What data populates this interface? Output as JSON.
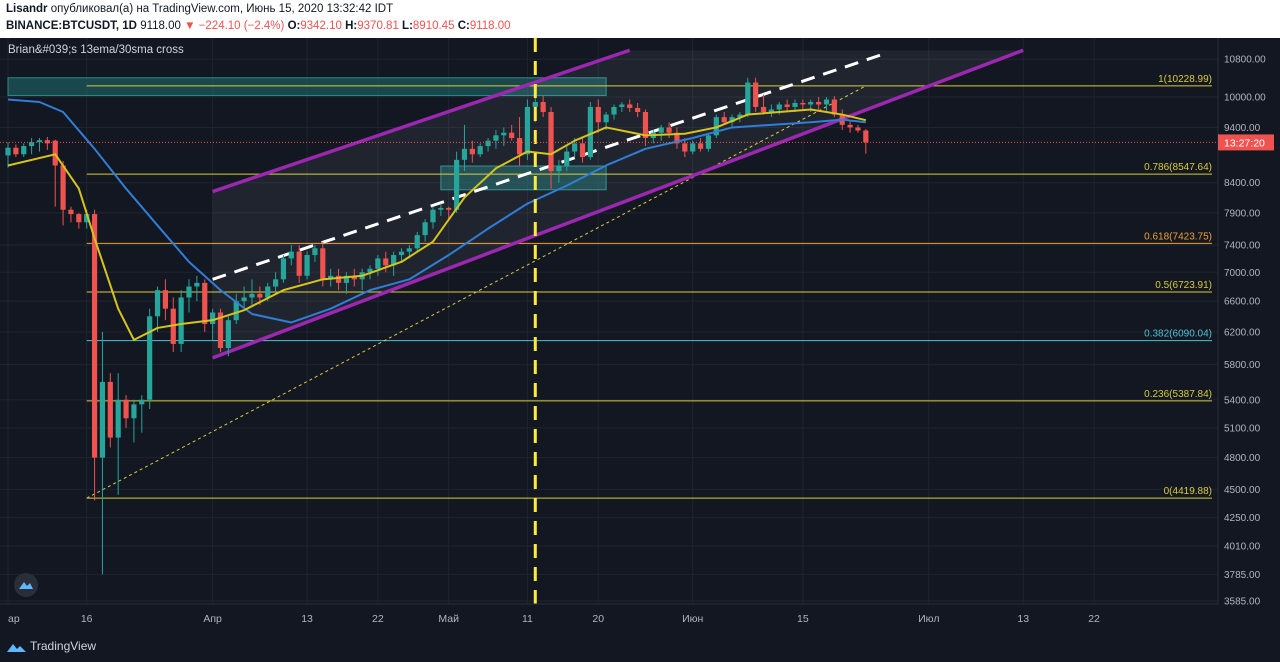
{
  "header": {
    "author": "Lisandr",
    "published_text": "опубликовал(а) на TradingView.com, Июнь 15, 2020 13:32:42 IDT",
    "symbol": "BINANCE:BTCUSDT, 1D",
    "last": "9118.00",
    "change": "▼ −224.10 (−2.4%)",
    "o_label": "O:",
    "o": "9342.10",
    "h_label": "H:",
    "h": "9370.81",
    "l_label": "L:",
    "l": "8910.45",
    "c_label": "C:",
    "c": "9118.00"
  },
  "indicator_label": "Brian&#039;s 13ema/30sma cross",
  "footer": {
    "brand": "TradingView"
  },
  "colors": {
    "background": "#131722",
    "up": "#26a69a",
    "down": "#ef5350",
    "ema13": "#d6c41a",
    "sma30": "#2f7ed8",
    "channel": "#9c27b0",
    "fib": "#d8cc3a",
    "fib_618": "#f0a030",
    "fib_382": "#4fc3d0",
    "zone": "#1f6f70"
  },
  "chart_data": {
    "type": "candlestick",
    "title": "",
    "xlabel": "",
    "ylabel": "",
    "scale": "log",
    "ylim": [
      3585,
      11050
    ],
    "y_ticks": [
      10800,
      10000,
      9400,
      8400,
      7900,
      7400,
      7000,
      6600,
      6200,
      5800,
      5400,
      5100,
      4800,
      4500,
      4250,
      4010,
      3785,
      3585
    ],
    "y_tick_labels": [
      "10800.00",
      "10000.00",
      "9400.00",
      "8400.00",
      "7900.00",
      "7400.00",
      "7000.00",
      "6600.00",
      "6200.00",
      "5800.00",
      "5400.00",
      "5100.00",
      "4800.00",
      "4500.00",
      "4250.00",
      "4010.00",
      "3785.00",
      "3585.00"
    ],
    "x_first_date": "2020-03-06",
    "x_ticks": [
      {
        "date": "2020-03-06",
        "label": "ар"
      },
      {
        "date": "2020-03-16",
        "label": "16"
      },
      {
        "date": "2020-04-01",
        "label": "Апр"
      },
      {
        "date": "2020-04-13",
        "label": "13"
      },
      {
        "date": "2020-04-22",
        "label": "22"
      },
      {
        "date": "2020-05-01",
        "label": "Май"
      },
      {
        "date": "2020-05-11",
        "label": "11"
      },
      {
        "date": "2020-05-20",
        "label": "20"
      },
      {
        "date": "2020-06-01",
        "label": "Июн"
      },
      {
        "date": "2020-06-15",
        "label": "15"
      },
      {
        "date": "2020-07-01",
        "label": "Июл"
      },
      {
        "date": "2020-07-13",
        "label": "13"
      },
      {
        "date": "2020-07-22",
        "label": "22"
      }
    ],
    "candles": [
      [
        "2020-03-06",
        8880,
        9120,
        8660,
        9020
      ],
      [
        "2020-03-07",
        9020,
        9080,
        8850,
        8900
      ],
      [
        "2020-03-08",
        8900,
        9100,
        8850,
        9050
      ],
      [
        "2020-03-09",
        9050,
        9200,
        8900,
        9120
      ],
      [
        "2020-03-10",
        9120,
        9200,
        8950,
        9160
      ],
      [
        "2020-03-11",
        9160,
        9220,
        8980,
        9100
      ],
      [
        "2020-03-12",
        9150,
        9170,
        8000,
        8700
      ],
      [
        "2020-03-13",
        8700,
        8780,
        7700,
        7950
      ],
      [
        "2020-03-14",
        7950,
        8000,
        7750,
        7880
      ],
      [
        "2020-03-15",
        7880,
        7900,
        7650,
        7750
      ],
      [
        "2020-03-16",
        7750,
        7950,
        7650,
        7880
      ],
      [
        "2020-03-17",
        7880,
        7950,
        4400,
        4800
      ],
      [
        "2020-03-18",
        4800,
        6200,
        3785,
        5600
      ],
      [
        "2020-03-19",
        5600,
        5700,
        4900,
        5000
      ],
      [
        "2020-03-20",
        5000,
        5700,
        4450,
        5400
      ],
      [
        "2020-03-21",
        5400,
        5450,
        5100,
        5200
      ],
      [
        "2020-03-22",
        5200,
        5400,
        4950,
        5350
      ],
      [
        "2020-03-23",
        5350,
        5450,
        5050,
        5400
      ],
      [
        "2020-03-24",
        5400,
        6500,
        5300,
        6400
      ],
      [
        "2020-03-25",
        6400,
        6800,
        6200,
        6750
      ],
      [
        "2020-03-26",
        6750,
        6900,
        6350,
        6500
      ],
      [
        "2020-03-27",
        6500,
        6650,
        5950,
        6050
      ],
      [
        "2020-03-28",
        6050,
        6750,
        5950,
        6650
      ],
      [
        "2020-03-29",
        6650,
        6900,
        6450,
        6800
      ],
      [
        "2020-03-30",
        6800,
        6950,
        6600,
        6850
      ],
      [
        "2020-03-31",
        6850,
        6900,
        6200,
        6300
      ],
      [
        "2020-04-01",
        6300,
        6500,
        6100,
        6450
      ],
      [
        "2020-04-02",
        6450,
        6500,
        5950,
        6000
      ],
      [
        "2020-04-03",
        6000,
        6400,
        5900,
        6350
      ],
      [
        "2020-04-04",
        6350,
        6700,
        6300,
        6600
      ],
      [
        "2020-04-05",
        6600,
        6800,
        6500,
        6650
      ],
      [
        "2020-04-06",
        6650,
        6900,
        6550,
        6700
      ],
      [
        "2020-04-07",
        6700,
        6800,
        6550,
        6650
      ],
      [
        "2020-04-08",
        6650,
        6850,
        6600,
        6800
      ],
      [
        "2020-04-09",
        6800,
        7000,
        6700,
        6900
      ],
      [
        "2020-04-10",
        6900,
        7250,
        6850,
        7200
      ],
      [
        "2020-04-11",
        7200,
        7400,
        7100,
        7300
      ],
      [
        "2020-04-12",
        7300,
        7400,
        6850,
        6950
      ],
      [
        "2020-04-13",
        6950,
        7300,
        6900,
        7250
      ],
      [
        "2020-04-14",
        7250,
        7400,
        7150,
        7350
      ],
      [
        "2020-04-15",
        7350,
        7450,
        6800,
        6900
      ],
      [
        "2020-04-16",
        6900,
        7050,
        6800,
        6950
      ],
      [
        "2020-04-17",
        6950,
        7050,
        6750,
        6850
      ],
      [
        "2020-04-18",
        6850,
        7000,
        6700,
        6950
      ],
      [
        "2020-04-19",
        6950,
        7050,
        6800,
        6900
      ],
      [
        "2020-04-20",
        6900,
        7050,
        6750,
        7000
      ],
      [
        "2020-04-21",
        7000,
        7100,
        6900,
        7050
      ],
      [
        "2020-04-22",
        7050,
        7250,
        6950,
        7200
      ],
      [
        "2020-04-23",
        7200,
        7300,
        7000,
        7100
      ],
      [
        "2020-04-24",
        7100,
        7300,
        6950,
        7250
      ],
      [
        "2020-04-25",
        7250,
        7350,
        7150,
        7300
      ],
      [
        "2020-04-26",
        7300,
        7400,
        7200,
        7350
      ],
      [
        "2020-04-27",
        7350,
        7600,
        7300,
        7550
      ],
      [
        "2020-04-28",
        7550,
        7800,
        7450,
        7750
      ],
      [
        "2020-04-29",
        7750,
        8000,
        7650,
        7950
      ],
      [
        "2020-04-30",
        7950,
        8050,
        7850,
        7980
      ],
      [
        "2020-05-01",
        7980,
        8000,
        7800,
        7950
      ],
      [
        "2020-05-02",
        7950,
        8950,
        7900,
        8800
      ],
      [
        "2020-05-03",
        8800,
        9450,
        8600,
        9000
      ],
      [
        "2020-05-04",
        9000,
        9150,
        8750,
        8900
      ],
      [
        "2020-05-05",
        8900,
        9100,
        8850,
        9050
      ],
      [
        "2020-05-06",
        9050,
        9200,
        8950,
        9150
      ],
      [
        "2020-05-07",
        9150,
        9350,
        9000,
        9250
      ],
      [
        "2020-05-08",
        9250,
        9400,
        9050,
        9300
      ],
      [
        "2020-05-09",
        9300,
        9450,
        9150,
        9200
      ],
      [
        "2020-05-10",
        9200,
        9600,
        8700,
        8900
      ],
      [
        "2020-05-11",
        8900,
        9950,
        8800,
        9800
      ],
      [
        "2020-05-12",
        9800,
        10050,
        9500,
        9900
      ],
      [
        "2020-05-13",
        9900,
        10020,
        9600,
        9700
      ],
      [
        "2020-05-14",
        9700,
        9800,
        8300,
        8600
      ],
      [
        "2020-05-15",
        8600,
        8800,
        8400,
        8700
      ],
      [
        "2020-05-16",
        8700,
        9050,
        8600,
        8950
      ],
      [
        "2020-05-17",
        8950,
        9200,
        8850,
        9100
      ],
      [
        "2020-05-18",
        9100,
        9200,
        8750,
        8850
      ],
      [
        "2020-05-19",
        8850,
        9900,
        8800,
        9800
      ],
      [
        "2020-05-20",
        9800,
        9950,
        9300,
        9500
      ],
      [
        "2020-05-21",
        9500,
        9700,
        9350,
        9650
      ],
      [
        "2020-05-22",
        9650,
        9850,
        9550,
        9800
      ],
      [
        "2020-05-23",
        9800,
        9900,
        9700,
        9850
      ],
      [
        "2020-05-24",
        9850,
        9950,
        9700,
        9780
      ],
      [
        "2020-05-25",
        9780,
        9880,
        9600,
        9700
      ],
      [
        "2020-05-26",
        9700,
        9750,
        9050,
        9200
      ],
      [
        "2020-05-27",
        9200,
        9350,
        9100,
        9300
      ],
      [
        "2020-05-28",
        9300,
        9450,
        9150,
        9400
      ],
      [
        "2020-05-29",
        9400,
        9500,
        9200,
        9300
      ],
      [
        "2020-05-30",
        9300,
        9400,
        9000,
        9100
      ],
      [
        "2020-05-31",
        9100,
        9200,
        8850,
        8950
      ],
      [
        "2020-06-01",
        8950,
        9150,
        8900,
        9100
      ],
      [
        "2020-06-02",
        9100,
        9200,
        8950,
        9000
      ],
      [
        "2020-06-03",
        9000,
        9300,
        8950,
        9250
      ],
      [
        "2020-06-04",
        9250,
        9650,
        9200,
        9600
      ],
      [
        "2020-06-05",
        9600,
        9700,
        9450,
        9500
      ],
      [
        "2020-06-06",
        9500,
        9650,
        9400,
        9600
      ],
      [
        "2020-06-07",
        9600,
        9700,
        9500,
        9650
      ],
      [
        "2020-06-08",
        9650,
        10400,
        9600,
        10300
      ],
      [
        "2020-06-09",
        10300,
        10400,
        9700,
        9800
      ],
      [
        "2020-06-10",
        9800,
        10050,
        9650,
        9700
      ],
      [
        "2020-06-11",
        9700,
        9850,
        9600,
        9750
      ],
      [
        "2020-06-12",
        9750,
        9900,
        9650,
        9850
      ],
      [
        "2020-06-13",
        9850,
        9950,
        9700,
        9800
      ],
      [
        "2020-06-14",
        9800,
        9950,
        9700,
        9880
      ],
      [
        "2020-06-15",
        9880,
        9950,
        9750,
        9850
      ],
      [
        "2020-06-16",
        9850,
        9950,
        9700,
        9900
      ],
      [
        "2020-06-17",
        9900,
        10000,
        9750,
        9850
      ],
      [
        "2020-06-18",
        9850,
        10000,
        9700,
        9950
      ],
      [
        "2020-06-19",
        9950,
        10020,
        9600,
        9650
      ],
      [
        "2020-06-20",
        9650,
        9750,
        9350,
        9450
      ],
      [
        "2020-06-21",
        9450,
        9550,
        9300,
        9400
      ],
      [
        "2020-06-22",
        9400,
        9450,
        9300,
        9342.1
      ],
      [
        "2020-06-23",
        9342.1,
        9370.81,
        8910.45,
        9118
      ]
    ],
    "ema13": [
      [
        "2020-03-06",
        8700
      ],
      [
        "2020-03-12",
        8900
      ],
      [
        "2020-03-15",
        8300
      ],
      [
        "2020-03-17",
        7500
      ],
      [
        "2020-03-20",
        6500
      ],
      [
        "2020-03-22",
        6100
      ],
      [
        "2020-03-25",
        6250
      ],
      [
        "2020-03-28",
        6300
      ],
      [
        "2020-04-01",
        6350
      ],
      [
        "2020-04-05",
        6480
      ],
      [
        "2020-04-10",
        6750
      ],
      [
        "2020-04-15",
        6900
      ],
      [
        "2020-04-20",
        6950
      ],
      [
        "2020-04-25",
        7150
      ],
      [
        "2020-04-29",
        7450
      ],
      [
        "2020-05-03",
        8150
      ],
      [
        "2020-05-07",
        8650
      ],
      [
        "2020-05-11",
        8950
      ],
      [
        "2020-05-14",
        8900
      ],
      [
        "2020-05-17",
        9150
      ],
      [
        "2020-05-21",
        9400
      ],
      [
        "2020-05-26",
        9250
      ],
      [
        "2020-05-31",
        9280
      ],
      [
        "2020-06-04",
        9400
      ],
      [
        "2020-06-08",
        9650
      ],
      [
        "2020-06-12",
        9700
      ],
      [
        "2020-06-16",
        9750
      ],
      [
        "2020-06-20",
        9650
      ],
      [
        "2020-06-23",
        9540
      ]
    ],
    "sma30": [
      [
        "2020-03-06",
        9950
      ],
      [
        "2020-03-10",
        9900
      ],
      [
        "2020-03-13",
        9700
      ],
      [
        "2020-03-17",
        9000
      ],
      [
        "2020-03-21",
        8300
      ],
      [
        "2020-03-25",
        7700
      ],
      [
        "2020-03-29",
        7150
      ],
      [
        "2020-04-02",
        6750
      ],
      [
        "2020-04-06",
        6430
      ],
      [
        "2020-04-11",
        6320
      ],
      [
        "2020-04-16",
        6500
      ],
      [
        "2020-04-21",
        6750
      ],
      [
        "2020-04-26",
        6900
      ],
      [
        "2020-05-01",
        7250
      ],
      [
        "2020-05-06",
        7650
      ],
      [
        "2020-05-11",
        8050
      ],
      [
        "2020-05-16",
        8350
      ],
      [
        "2020-05-21",
        8700
      ],
      [
        "2020-05-26",
        9000
      ],
      [
        "2020-06-01",
        9200
      ],
      [
        "2020-06-06",
        9400
      ],
      [
        "2020-06-11",
        9450
      ],
      [
        "2020-06-16",
        9500
      ],
      [
        "2020-06-20",
        9550
      ],
      [
        "2020-06-23",
        9500
      ]
    ],
    "fib_levels": [
      {
        "ratio": 1,
        "price": 10228.99,
        "label": "1(10228.99)"
      },
      {
        "ratio": 0.786,
        "price": 8547.64,
        "label": "0.786(8547.64)"
      },
      {
        "ratio": 0.618,
        "price": 7423.75,
        "label": "0.618(7423.75)"
      },
      {
        "ratio": 0.5,
        "price": 6723.91,
        "label": "0.5(6723.91)"
      },
      {
        "ratio": 0.382,
        "price": 6090.04,
        "label": "0.382(6090.04)"
      },
      {
        "ratio": 0.236,
        "price": 5387.84,
        "label": "0.236(5387.84)"
      },
      {
        "ratio": 0,
        "price": 4419.88,
        "label": "0(4419.88)"
      }
    ],
    "fib_start": "2020-03-16",
    "fib_end": "2020-06-23",
    "channel": {
      "upper": [
        [
          "2020-04-01",
          8250
        ],
        [
          "2020-05-24",
          11000
        ]
      ],
      "lower": [
        [
          "2020-04-01",
          5880
        ],
        [
          "2020-07-13",
          11000
        ]
      ],
      "midline": [
        [
          "2020-04-01",
          6900
        ],
        [
          "2020-06-25",
          10900
        ]
      ],
      "start": "2020-04-01"
    },
    "zones": [
      {
        "from": "2020-03-06",
        "to": "2020-05-21",
        "high": 10400,
        "low": 10030
      },
      {
        "from": "2020-04-30",
        "to": "2020-05-21",
        "high": 8690,
        "low": 8280
      }
    ],
    "vline_date": "2020-05-12",
    "current_price": 9118.0,
    "price_label": "13:27:20"
  }
}
